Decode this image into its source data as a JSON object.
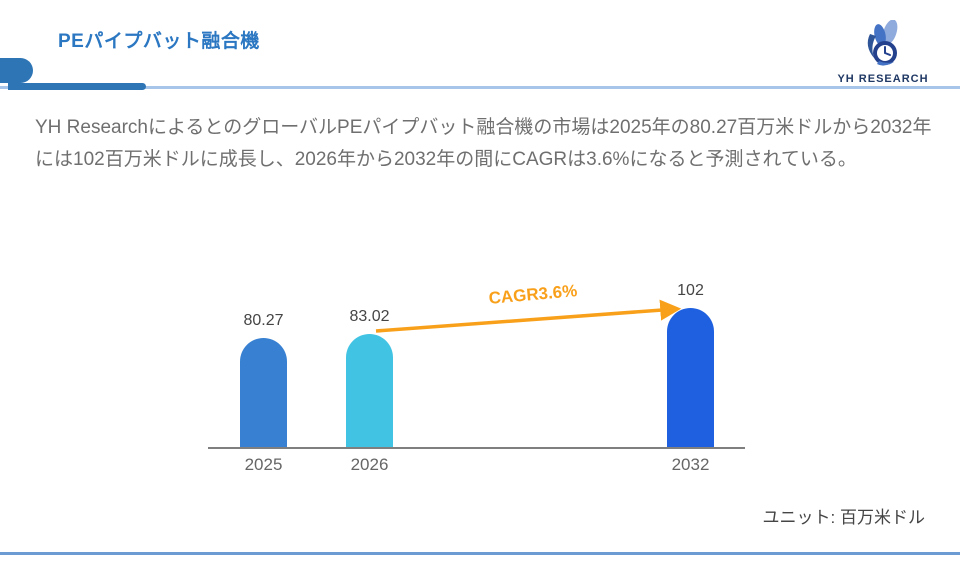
{
  "header": {
    "title": "PEパイプバット融合機",
    "logo_text": "YH RESEARCH"
  },
  "description": "YH ResearchによるとのグローバルPEパイプバット融合機の市場は2025年の80.27百万米ドルから2032年には102百万米ドルに成長し、2026年から2032年の間にCAGRは3.6%になると予測されている。",
  "chart_data": {
    "type": "bar",
    "categories": [
      "2025",
      "2026",
      "2032"
    ],
    "values": [
      80.27,
      83.02,
      102
    ],
    "value_labels": [
      "80.27",
      "83.02",
      "102"
    ],
    "annotation": "CAGR3.6%",
    "unit_label": "ユニット: 百万米ドル",
    "bar_colors": [
      "#3780D2",
      "#41C3E3",
      "#1F60E0"
    ],
    "arrow_color": "#F9A01B",
    "ylim": [
      0,
      110
    ],
    "grid": false,
    "legend": false
  },
  "colors": {
    "title_blue": "#2B77C2",
    "accent_blue": "#2E75B6",
    "divider_light_blue": "#A7C5E8",
    "footer_line_blue": "#6B9BD2",
    "body_text_gray": "#6F6F6F",
    "axis_gray": "#7F7F7F",
    "label_gray": "#454545"
  }
}
